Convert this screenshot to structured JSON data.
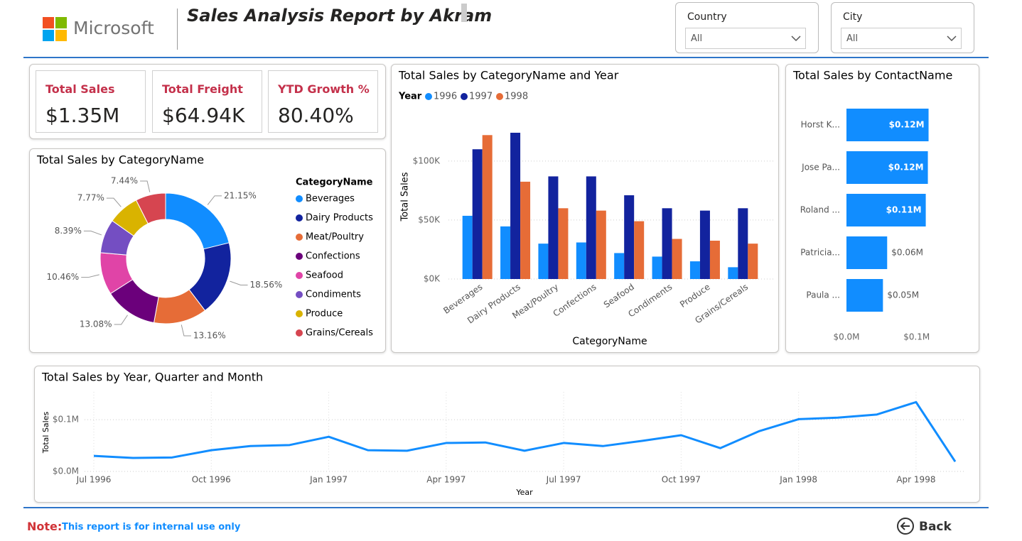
{
  "header": {
    "logo": "Microsoft",
    "title": "Sales Analysis Report by Akram"
  },
  "slicers": [
    {
      "label": "Country",
      "value": "All"
    },
    {
      "label": "City",
      "value": "All"
    }
  ],
  "kpis": [
    {
      "label": "Total Sales",
      "value": "$1.35M"
    },
    {
      "label": "Total Freight",
      "value": "$64.94K"
    },
    {
      "label": "YTD Growth %",
      "value": "80.40%"
    }
  ],
  "chart_data": [
    {
      "type": "donut",
      "title": "Total Sales by CategoryName",
      "legend_title": "CategoryName",
      "categories": [
        "Beverages",
        "Dairy Products",
        "Meat/Poultry",
        "Confections",
        "Seafood",
        "Condiments",
        "Produce",
        "Grains/Cereals"
      ],
      "values": [
        21.15,
        18.56,
        13.16,
        13.08,
        10.46,
        8.39,
        7.77,
        7.44
      ],
      "value_labels": [
        "21.15%",
        "18.56%",
        "13.16%",
        "13.08%",
        "10.46%",
        "8.39%",
        "7.77%",
        "7.44%"
      ],
      "colors": [
        "#118dff",
        "#12239e",
        "#e66c37",
        "#6b007b",
        "#e044a7",
        "#744ec2",
        "#d9b300",
        "#d64550"
      ]
    },
    {
      "type": "bar",
      "orientation": "vertical",
      "title": "Total Sales by CategoryName and Year",
      "legend_title": "Year",
      "x_label": "CategoryName",
      "y_label": "Total Sales",
      "categories": [
        "Beverages",
        "Dairy Products",
        "Meat/Poultry",
        "Confections",
        "Seafood",
        "Condiments",
        "Produce",
        "Grains/Cereals"
      ],
      "series": [
        {
          "name": "1996",
          "color": "#118dff",
          "values": [
            53600,
            44600,
            30000,
            31000,
            22000,
            19000,
            15000,
            10000
          ]
        },
        {
          "name": "1997",
          "color": "#12239e",
          "values": [
            110000,
            124000,
            87000,
            87000,
            71000,
            60000,
            58000,
            60000
          ]
        },
        {
          "name": "1998",
          "color": "#e66c37",
          "values": [
            122000,
            82500,
            60000,
            58000,
            49000,
            34000,
            32500,
            30000
          ]
        }
      ],
      "ylim": [
        0,
        130000
      ],
      "yticks": [
        {
          "value": 0,
          "label": "$0K"
        },
        {
          "value": 50000,
          "label": "$50K"
        },
        {
          "value": 100000,
          "label": "$100K"
        }
      ],
      "grid": true
    },
    {
      "type": "bar",
      "orientation": "horizontal",
      "title": "Total Sales by ContactName",
      "color": "#118dff",
      "categories": [
        "Horst K...",
        "Jose Pa...",
        "Roland ...",
        "Patricia...",
        "Paula ..."
      ],
      "values": [
        117000,
        116000,
        113000,
        58000,
        52000
      ],
      "value_labels": [
        "$0.12M",
        "$0.12M",
        "$0.11M",
        "$0.06M",
        "$0.05M"
      ],
      "xlim": [
        0,
        160000
      ],
      "xticks": [
        {
          "value": 0,
          "label": "$0.0M"
        },
        {
          "value": 100000,
          "label": "$0.1M"
        }
      ]
    },
    {
      "type": "line",
      "title": "Total Sales by Year, Quarter and Month",
      "x_label": "Year",
      "y_label": "Total Sales",
      "color": "#118dff",
      "categories": [
        "Jul 1996",
        null,
        null,
        "Oct 1996",
        null,
        null,
        "Jan 1997",
        null,
        null,
        "Apr 1997",
        null,
        null,
        "Jul 1997",
        null,
        null,
        "Oct 1997",
        null,
        null,
        "Jan 1998",
        null,
        null,
        "Apr 1998",
        null
      ],
      "values": [
        30000,
        26000,
        27000,
        41000,
        49000,
        51000,
        67000,
        41000,
        40000,
        55000,
        56000,
        40000,
        55000,
        49000,
        59000,
        70000,
        45000,
        78000,
        101000,
        104000,
        110000,
        134000,
        19000
      ],
      "ylim": [
        0,
        140000
      ],
      "yticks": [
        {
          "value": 0,
          "label": "$0.0M"
        },
        {
          "value": 100000,
          "label": "$0.1M"
        }
      ],
      "grid": true
    }
  ],
  "footer": {
    "note_label": "Note:",
    "note": "This report is for internal use only",
    "back": "Back"
  }
}
